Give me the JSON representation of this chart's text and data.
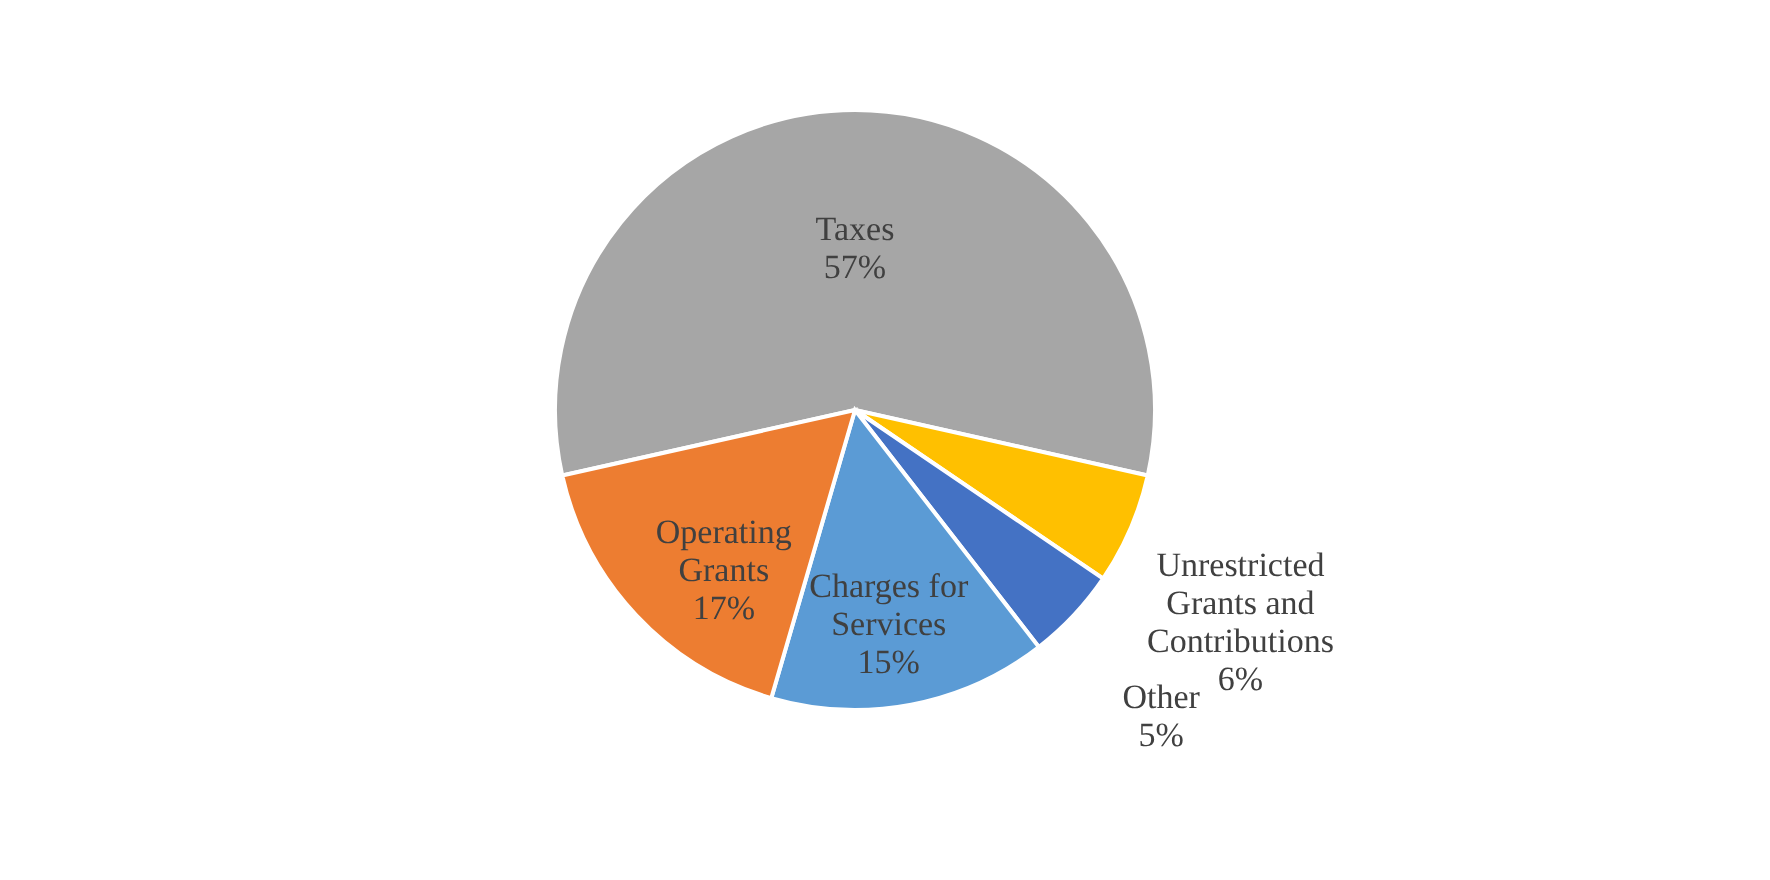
{
  "chart_data": {
    "type": "pie",
    "categories": [
      "Taxes",
      "Unrestricted Grants and Contributions",
      "Other",
      "Charges for Services",
      "Operating Grants"
    ],
    "values": [
      57,
      6,
      5,
      15,
      17
    ],
    "colors": [
      "#a6a6a6",
      "#ffc000",
      "#4472c4",
      "#5b9bd5",
      "#ed7d31"
    ],
    "value_labels": [
      "57%",
      "6%",
      "5%",
      "15%",
      "17%"
    ],
    "legend": false
  }
}
